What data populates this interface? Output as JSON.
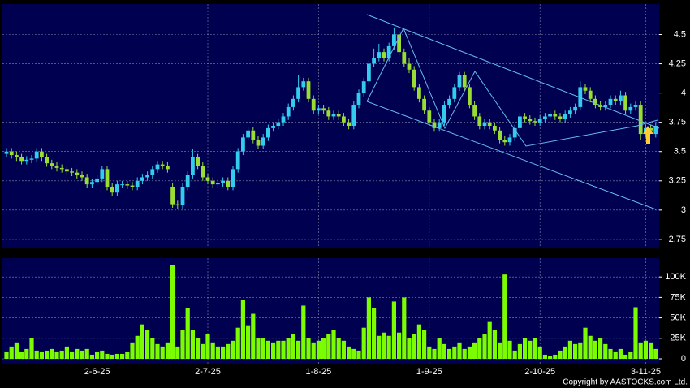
{
  "chart_data": [
    {
      "type": "candlestick",
      "open": [
        3.48,
        3.5,
        3.47,
        3.45,
        3.42,
        3.43,
        3.44,
        3.5,
        3.45,
        3.4,
        3.38,
        3.36,
        3.35,
        3.33,
        3.32,
        3.3,
        3.28,
        3.22,
        3.24,
        3.27,
        3.35,
        3.2,
        3.15,
        3.22,
        3.22,
        3.21,
        3.2,
        3.25,
        3.28,
        3.3,
        3.35,
        3.39,
        3.38,
        3.2,
        3.05,
        3.04,
        3.2,
        3.3,
        3.45,
        3.38,
        3.28,
        3.25,
        3.22,
        3.23,
        3.25,
        3.2,
        3.35,
        3.5,
        3.62,
        3.68,
        3.6,
        3.55,
        3.62,
        3.7,
        3.72,
        3.75,
        3.8,
        3.88,
        3.95,
        4.05,
        4.1,
        3.95,
        3.85,
        3.87,
        3.85,
        3.8,
        3.82,
        3.8,
        3.75,
        3.72,
        3.9,
        4.0,
        4.1,
        4.25,
        4.3,
        4.35,
        4.3,
        4.4,
        4.5,
        4.35,
        4.25,
        4.2,
        4.05,
        3.95,
        3.85,
        3.75,
        3.7,
        3.75,
        3.9,
        3.95,
        4.05,
        4.15,
        4.05,
        3.9,
        3.8,
        3.72,
        3.75,
        3.72,
        3.68,
        3.6,
        3.58,
        3.62,
        3.7,
        3.8,
        3.78,
        3.76,
        3.75,
        3.78,
        3.8,
        3.82,
        3.8,
        3.78,
        3.82,
        3.85,
        3.88,
        4.05,
        4.02,
        3.95,
        3.9,
        3.88,
        3.9,
        3.95,
        3.93,
        3.98,
        3.85,
        3.88,
        3.9,
        3.65,
        3.7,
        3.65
      ],
      "high": [
        3.53,
        3.53,
        3.5,
        3.48,
        3.46,
        3.47,
        3.53,
        3.53,
        3.48,
        3.43,
        3.41,
        3.39,
        3.38,
        3.36,
        3.35,
        3.33,
        3.31,
        3.27,
        3.3,
        3.38,
        3.38,
        3.23,
        3.25,
        3.25,
        3.25,
        3.24,
        3.28,
        3.31,
        3.33,
        3.38,
        3.42,
        3.42,
        3.41,
        3.23,
        3.08,
        3.23,
        3.33,
        3.52,
        3.48,
        3.41,
        3.31,
        3.28,
        3.26,
        3.28,
        3.28,
        3.38,
        3.53,
        3.65,
        3.71,
        3.71,
        3.63,
        3.65,
        3.73,
        3.75,
        3.78,
        3.83,
        3.91,
        3.98,
        4.15,
        4.13,
        4.13,
        3.98,
        3.9,
        3.9,
        3.88,
        3.85,
        3.85,
        3.83,
        3.78,
        3.93,
        4.03,
        4.13,
        4.28,
        4.38,
        4.42,
        4.38,
        4.43,
        4.56,
        4.53,
        4.38,
        4.3,
        4.23,
        4.08,
        3.98,
        3.88,
        3.78,
        3.78,
        3.93,
        3.98,
        4.08,
        4.18,
        4.18,
        4.08,
        3.93,
        3.83,
        3.78,
        3.78,
        3.75,
        3.71,
        3.63,
        3.65,
        3.73,
        3.83,
        3.83,
        3.81,
        3.79,
        3.81,
        3.83,
        3.85,
        3.85,
        3.83,
        3.85,
        3.88,
        3.91,
        4.1,
        4.08,
        4.05,
        3.98,
        3.93,
        3.93,
        3.98,
        3.98,
        4.02,
        4.01,
        3.91,
        3.93,
        3.93,
        3.73,
        3.73,
        3.75
      ],
      "low": [
        3.45,
        3.44,
        3.42,
        3.39,
        3.39,
        3.4,
        3.41,
        3.42,
        3.37,
        3.35,
        3.33,
        3.32,
        3.3,
        3.29,
        3.27,
        3.25,
        3.19,
        3.19,
        3.21,
        3.24,
        3.17,
        3.12,
        3.12,
        3.19,
        3.18,
        3.17,
        3.17,
        3.22,
        3.25,
        3.27,
        3.32,
        3.35,
        3.32,
        3.02,
        3.01,
        3.01,
        3.17,
        3.27,
        3.35,
        3.25,
        3.22,
        3.19,
        3.19,
        3.2,
        3.17,
        3.17,
        3.32,
        3.47,
        3.59,
        3.57,
        3.52,
        3.52,
        3.59,
        3.67,
        3.69,
        3.72,
        3.77,
        3.85,
        3.92,
        4.02,
        3.92,
        3.82,
        3.82,
        3.82,
        3.77,
        3.77,
        3.77,
        3.72,
        3.69,
        3.69,
        3.87,
        3.97,
        4.07,
        4.22,
        4.27,
        4.27,
        4.27,
        4.37,
        4.32,
        4.22,
        4.17,
        4.02,
        3.92,
        3.82,
        3.72,
        3.67,
        3.67,
        3.72,
        3.87,
        3.92,
        4.02,
        4.02,
        3.87,
        3.77,
        3.69,
        3.69,
        3.69,
        3.65,
        3.57,
        3.55,
        3.55,
        3.59,
        3.67,
        3.75,
        3.73,
        3.72,
        3.72,
        3.75,
        3.77,
        3.77,
        3.75,
        3.75,
        3.79,
        3.82,
        3.85,
        3.99,
        3.92,
        3.87,
        3.85,
        3.85,
        3.87,
        3.9,
        3.9,
        3.82,
        3.82,
        3.85,
        3.6,
        3.62,
        3.65,
        3.62
      ],
      "close": [
        3.5,
        3.47,
        3.45,
        3.42,
        3.43,
        3.44,
        3.5,
        3.45,
        3.4,
        3.38,
        3.36,
        3.35,
        3.33,
        3.32,
        3.3,
        3.28,
        3.22,
        3.24,
        3.27,
        3.35,
        3.2,
        3.15,
        3.22,
        3.22,
        3.21,
        3.2,
        3.25,
        3.28,
        3.3,
        3.35,
        3.39,
        3.38,
        3.35,
        3.05,
        3.04,
        3.2,
        3.3,
        3.45,
        3.38,
        3.28,
        3.25,
        3.22,
        3.23,
        3.25,
        3.2,
        3.35,
        3.5,
        3.62,
        3.68,
        3.6,
        3.55,
        3.62,
        3.7,
        3.72,
        3.75,
        3.8,
        3.88,
        3.95,
        4.05,
        4.1,
        3.95,
        3.85,
        3.87,
        3.85,
        3.8,
        3.82,
        3.8,
        3.75,
        3.72,
        3.9,
        4.0,
        4.1,
        4.25,
        4.3,
        4.35,
        4.3,
        4.4,
        4.5,
        4.35,
        4.25,
        4.2,
        4.05,
        3.95,
        3.85,
        3.75,
        3.7,
        3.75,
        3.9,
        3.95,
        4.05,
        4.15,
        4.05,
        3.9,
        3.8,
        3.72,
        3.75,
        3.72,
        3.68,
        3.6,
        3.58,
        3.62,
        3.7,
        3.8,
        3.78,
        3.76,
        3.75,
        3.78,
        3.8,
        3.82,
        3.8,
        3.78,
        3.82,
        3.85,
        3.88,
        4.05,
        4.02,
        3.95,
        3.9,
        3.88,
        3.9,
        3.95,
        3.93,
        3.98,
        3.85,
        3.88,
        3.9,
        3.65,
        3.7,
        3.68,
        3.72
      ],
      "up_color": "#33ccee",
      "down_color": "#99dd33",
      "ylim": [
        2.68,
        4.76
      ],
      "yticks": [
        2.75,
        3,
        3.25,
        3.5,
        3.75,
        4,
        4.25,
        4.5
      ],
      "grid": true
    },
    {
      "type": "bar",
      "categories": [
        null,
        null,
        null,
        null,
        null,
        null,
        null,
        null,
        null,
        null,
        null,
        null,
        null,
        null,
        null,
        null,
        null,
        null,
        "2-6-25",
        null,
        null,
        null,
        null,
        null,
        null,
        null,
        null,
        null,
        null,
        null,
        null,
        null,
        null,
        null,
        null,
        null,
        null,
        null,
        null,
        null,
        "2-7-25",
        null,
        null,
        null,
        null,
        null,
        null,
        null,
        null,
        null,
        null,
        null,
        null,
        null,
        null,
        null,
        null,
        null,
        null,
        null,
        null,
        null,
        "1-8-25",
        null,
        null,
        null,
        null,
        null,
        null,
        null,
        null,
        null,
        null,
        null,
        null,
        null,
        null,
        null,
        null,
        null,
        null,
        null,
        null,
        null,
        "1-9-25",
        null,
        null,
        null,
        null,
        null,
        null,
        null,
        null,
        null,
        null,
        null,
        null,
        null,
        null,
        null,
        null,
        null,
        null,
        null,
        null,
        null,
        "2-10-25",
        null,
        null,
        null,
        null,
        null,
        null,
        null,
        null,
        null,
        null,
        null,
        null,
        null,
        null,
        null,
        null,
        null,
        null,
        null,
        null,
        "3-11-25",
        null,
        null
      ],
      "values": [
        8000,
        15000,
        20000,
        8000,
        12000,
        25000,
        10000,
        8000,
        10000,
        12000,
        8000,
        10000,
        15000,
        8000,
        12000,
        10000,
        12000,
        5000,
        8000,
        10000,
        6000,
        5000,
        6000,
        6000,
        8000,
        20000,
        28000,
        42000,
        35000,
        25000,
        18000,
        15000,
        20000,
        115000,
        15000,
        35000,
        62000,
        35000,
        25000,
        18000,
        30000,
        20000,
        15000,
        15000,
        18000,
        22000,
        38000,
        72000,
        40000,
        55000,
        25000,
        25000,
        22000,
        20000,
        22000,
        22000,
        25000,
        30000,
        22000,
        65000,
        25000,
        20000,
        22000,
        25000,
        30000,
        35000,
        25000,
        22000,
        15000,
        12000,
        10000,
        38000,
        75000,
        62000,
        28000,
        32000,
        28000,
        70000,
        32000,
        75000,
        25000,
        30000,
        42000,
        35000,
        15000,
        12000,
        25000,
        18000,
        12000,
        15000,
        20000,
        12000,
        15000,
        20000,
        25000,
        30000,
        45000,
        35000,
        20000,
        103000,
        22000,
        10000,
        18000,
        25000,
        22000,
        25000,
        15000,
        5000,
        3000,
        5000,
        10000,
        15000,
        22000,
        18000,
        20000,
        38000,
        28000,
        22000,
        25000,
        18000,
        12000,
        8000,
        12000,
        5000,
        8000,
        63000,
        20000,
        22000,
        20000,
        12000
      ],
      "color": "#7cfc00",
      "ylim": [
        0,
        123000
      ],
      "yticks": [
        0,
        {
          "value": 25000,
          "label": "25K"
        },
        {
          "value": 50000,
          "label": "50K"
        },
        {
          "value": 75000,
          "label": "75K"
        },
        {
          "value": 100000,
          "label": "100K"
        }
      ],
      "grid": true
    }
  ],
  "footer": "Copyright by AASTOCKS.com Ltd."
}
